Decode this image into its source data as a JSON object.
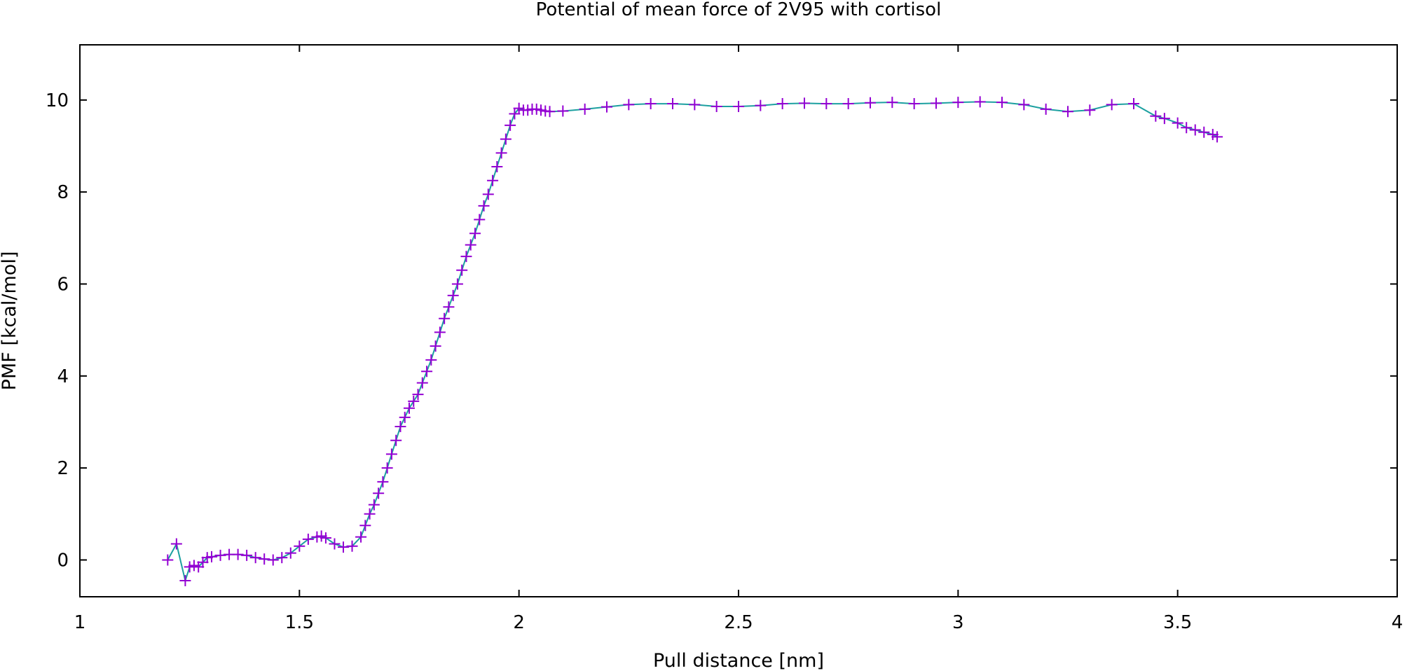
{
  "chart_data": {
    "type": "line",
    "title": "Potential of mean force of 2V95 with cortisol",
    "xlabel": "Pull distance [nm]",
    "ylabel": "PMF [kcal/mol]",
    "xlim": [
      1,
      4
    ],
    "ylim": [
      -0.8,
      11.2
    ],
    "xticks": [
      1,
      1.5,
      2,
      2.5,
      3,
      3.5,
      4
    ],
    "xtick_labels": [
      "1",
      "1.5",
      "2",
      "2.5",
      "3",
      "3.5",
      "4"
    ],
    "yticks": [
      0,
      2,
      4,
      6,
      8,
      10
    ],
    "ytick_labels": [
      "0",
      "2",
      "4",
      "6",
      "8",
      "10"
    ],
    "grid": false,
    "legend": "none",
    "marker": "plus",
    "series": [
      {
        "line_color": "#1ca0a0",
        "marker_color": "#9400d3",
        "x": [
          1.2,
          1.22,
          1.24,
          1.25,
          1.26,
          1.27,
          1.28,
          1.29,
          1.3,
          1.32,
          1.34,
          1.36,
          1.38,
          1.4,
          1.42,
          1.44,
          1.46,
          1.48,
          1.5,
          1.52,
          1.54,
          1.55,
          1.56,
          1.58,
          1.6,
          1.62,
          1.64,
          1.65,
          1.66,
          1.67,
          1.68,
          1.69,
          1.7,
          1.71,
          1.72,
          1.73,
          1.74,
          1.75,
          1.76,
          1.77,
          1.78,
          1.79,
          1.8,
          1.81,
          1.82,
          1.83,
          1.84,
          1.85,
          1.86,
          1.87,
          1.88,
          1.89,
          1.9,
          1.91,
          1.92,
          1.93,
          1.94,
          1.95,
          1.96,
          1.97,
          1.98,
          1.99,
          2.0,
          2.01,
          2.02,
          2.03,
          2.04,
          2.05,
          2.06,
          2.07,
          2.1,
          2.15,
          2.2,
          2.25,
          2.3,
          2.35,
          2.4,
          2.45,
          2.5,
          2.55,
          2.6,
          2.65,
          2.7,
          2.75,
          2.8,
          2.85,
          2.9,
          2.95,
          3.0,
          3.05,
          3.1,
          3.15,
          3.2,
          3.25,
          3.3,
          3.35,
          3.4,
          3.45,
          3.47,
          3.5,
          3.52,
          3.54,
          3.56,
          3.58,
          3.59
        ],
        "y": [
          0.0,
          0.35,
          -0.45,
          -0.15,
          -0.12,
          -0.15,
          -0.05,
          0.05,
          0.07,
          0.1,
          0.12,
          0.12,
          0.1,
          0.05,
          0.02,
          0.0,
          0.05,
          0.15,
          0.3,
          0.45,
          0.5,
          0.52,
          0.48,
          0.35,
          0.28,
          0.3,
          0.5,
          0.75,
          1.0,
          1.2,
          1.45,
          1.7,
          2.0,
          2.3,
          2.6,
          2.9,
          3.1,
          3.3,
          3.45,
          3.6,
          3.85,
          4.1,
          4.35,
          4.65,
          4.95,
          5.25,
          5.5,
          5.75,
          6.0,
          6.3,
          6.6,
          6.85,
          7.1,
          7.4,
          7.7,
          7.95,
          8.25,
          8.55,
          8.85,
          9.15,
          9.45,
          9.7,
          9.82,
          9.78,
          9.78,
          9.8,
          9.8,
          9.78,
          9.76,
          9.75,
          9.76,
          9.8,
          9.85,
          9.9,
          9.92,
          9.92,
          9.9,
          9.86,
          9.86,
          9.88,
          9.92,
          9.93,
          9.92,
          9.92,
          9.94,
          9.95,
          9.92,
          9.93,
          9.95,
          9.96,
          9.95,
          9.9,
          9.8,
          9.75,
          9.78,
          9.9,
          9.92,
          9.65,
          9.6,
          9.5,
          9.4,
          9.35,
          9.3,
          9.25,
          9.2
        ]
      }
    ]
  }
}
